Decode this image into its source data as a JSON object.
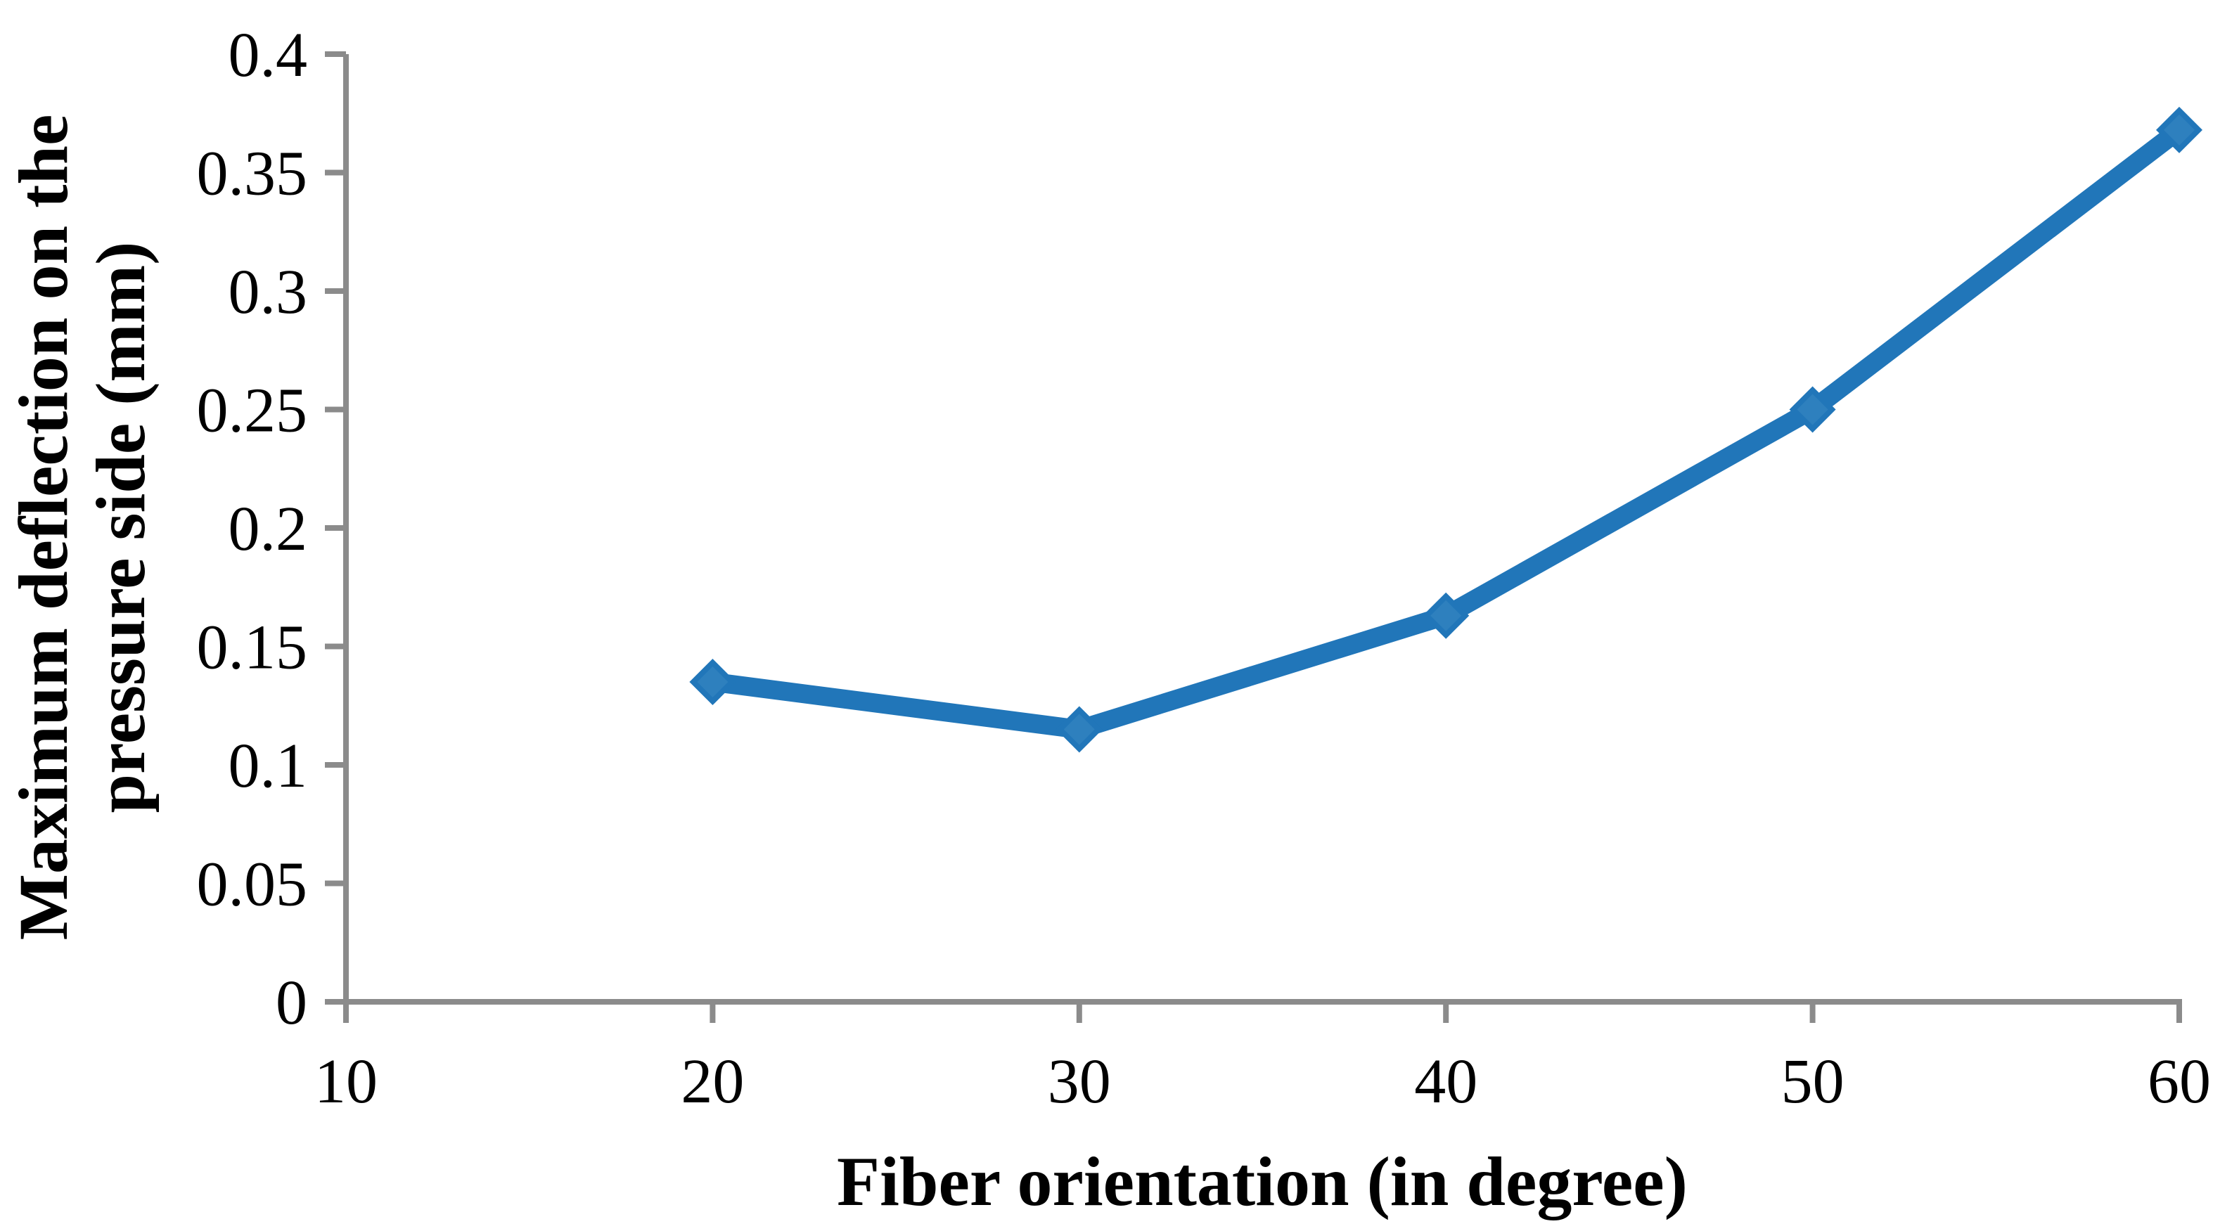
{
  "figure": {
    "background_color": "#ffffff"
  },
  "chart_data": {
    "type": "line",
    "title": "",
    "xlabel": "Fiber orientation (in degree)",
    "ylabel": "Maximum deflection on the pressure side (mm)",
    "ylabel_lines": [
      "Maximum deflection on the",
      "pressure side (mm)"
    ],
    "series": [
      {
        "name": "Maximum deflection",
        "x": [
          20,
          30,
          40,
          50,
          60
        ],
        "y": [
          0.135,
          0.115,
          0.163,
          0.25,
          0.368
        ],
        "marker": "diamond",
        "line_color": "#2176B9",
        "marker_color": "#2176B9",
        "marker_inner_color": "#2E80BE"
      }
    ],
    "xlim": [
      10,
      60
    ],
    "ylim": [
      0,
      0.4
    ],
    "x_tick_labels": [
      "10",
      "20",
      "30",
      "40",
      "50",
      "60"
    ],
    "x_tick_values": [
      10,
      20,
      30,
      40,
      50,
      60
    ],
    "y_tick_labels": [
      "0",
      "0.05",
      "0.1",
      "0.15",
      "0.2",
      "0.25",
      "0.3",
      "0.35",
      "0.4"
    ],
    "y_tick_values": [
      0,
      0.05,
      0.1,
      0.15,
      0.2,
      0.25,
      0.3,
      0.35,
      0.4
    ],
    "grid": false,
    "legend": false,
    "axis_color": "#8B8B8B"
  }
}
